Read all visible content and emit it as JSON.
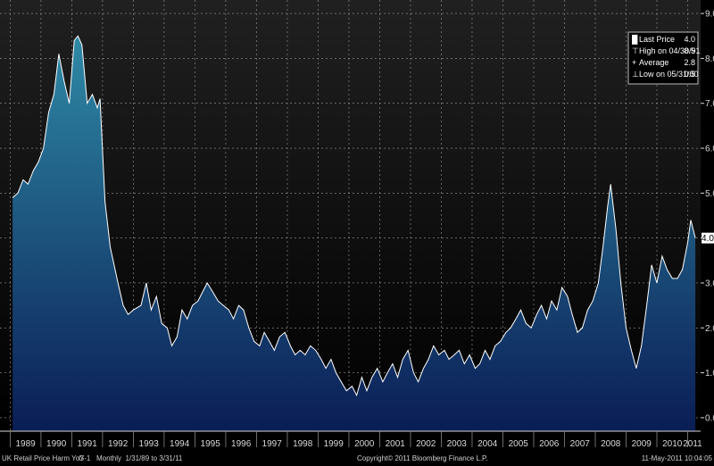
{
  "chart_data": {
    "type": "area",
    "title": "",
    "xlabel": "",
    "ylabel": "",
    "ylim": [
      -0.3,
      9.3
    ],
    "yticks": [
      "0.0",
      "1.0",
      "2.0",
      "3.0",
      "4.0",
      "5.0",
      "6.0",
      "7.0",
      "8.0",
      "9.0"
    ],
    "x_tick_labels": [
      "1989",
      "1990",
      "1991",
      "1992",
      "1993",
      "1994",
      "1995",
      "1996",
      "1997",
      "1998",
      "1999",
      "2000",
      "2001",
      "2002",
      "2003",
      "2004",
      "2005",
      "2006",
      "2007",
      "2008",
      "2009",
      "2010",
      "2011"
    ],
    "last_value_label": "4.0",
    "grid": true,
    "legend_position": "top-right",
    "legend": [
      {
        "marker": "█",
        "label": "Last Price",
        "value": "4.0"
      },
      {
        "marker": "⊤",
        "label": "High on 04/30/91",
        "value": "8.5"
      },
      {
        "marker": "+",
        "label": "Average",
        "value": "2.8"
      },
      {
        "marker": "⊥",
        "label": "Low on 05/31/00",
        "value": "0.5"
      }
    ],
    "series": [
      {
        "points": [
          [
            1989.08,
            4.9
          ],
          [
            1989.25,
            5.0
          ],
          [
            1989.42,
            5.3
          ],
          [
            1989.58,
            5.2
          ],
          [
            1989.75,
            5.5
          ],
          [
            1989.92,
            5.7
          ],
          [
            1990.08,
            6.0
          ],
          [
            1990.25,
            6.8
          ],
          [
            1990.42,
            7.2
          ],
          [
            1990.58,
            8.1
          ],
          [
            1990.75,
            7.5
          ],
          [
            1990.92,
            7.0
          ],
          [
            1991.08,
            8.4
          ],
          [
            1991.2,
            8.5
          ],
          [
            1991.33,
            8.3
          ],
          [
            1991.5,
            7.0
          ],
          [
            1991.67,
            7.2
          ],
          [
            1991.83,
            6.9
          ],
          [
            1991.92,
            7.1
          ],
          [
            1992.08,
            4.8
          ],
          [
            1992.25,
            3.8
          ],
          [
            1992.5,
            3.0
          ],
          [
            1992.67,
            2.5
          ],
          [
            1992.83,
            2.3
          ],
          [
            1993.0,
            2.4
          ],
          [
            1993.25,
            2.5
          ],
          [
            1993.42,
            3.0
          ],
          [
            1993.58,
            2.4
          ],
          [
            1993.75,
            2.7
          ],
          [
            1993.92,
            2.1
          ],
          [
            1994.1,
            2.0
          ],
          [
            1994.25,
            1.6
          ],
          [
            1994.42,
            1.8
          ],
          [
            1994.58,
            2.4
          ],
          [
            1994.75,
            2.2
          ],
          [
            1994.92,
            2.5
          ],
          [
            1995.1,
            2.6
          ],
          [
            1995.25,
            2.8
          ],
          [
            1995.4,
            3.0
          ],
          [
            1995.58,
            2.8
          ],
          [
            1995.75,
            2.6
          ],
          [
            1995.92,
            2.5
          ],
          [
            1996.1,
            2.4
          ],
          [
            1996.25,
            2.2
          ],
          [
            1996.42,
            2.5
          ],
          [
            1996.58,
            2.4
          ],
          [
            1996.75,
            2.0
          ],
          [
            1996.92,
            1.7
          ],
          [
            1997.1,
            1.6
          ],
          [
            1997.25,
            1.9
          ],
          [
            1997.42,
            1.7
          ],
          [
            1997.58,
            1.5
          ],
          [
            1997.75,
            1.8
          ],
          [
            1997.92,
            1.9
          ],
          [
            1998.1,
            1.6
          ],
          [
            1998.25,
            1.4
          ],
          [
            1998.42,
            1.5
          ],
          [
            1998.58,
            1.4
          ],
          [
            1998.75,
            1.6
          ],
          [
            1998.92,
            1.5
          ],
          [
            1999.1,
            1.3
          ],
          [
            1999.25,
            1.1
          ],
          [
            1999.42,
            1.3
          ],
          [
            1999.58,
            1.0
          ],
          [
            1999.75,
            0.8
          ],
          [
            1999.92,
            0.6
          ],
          [
            2000.1,
            0.7
          ],
          [
            2000.25,
            0.5
          ],
          [
            2000.42,
            0.9
          ],
          [
            2000.58,
            0.6
          ],
          [
            2000.75,
            0.9
          ],
          [
            2000.92,
            1.1
          ],
          [
            2001.1,
            0.8
          ],
          [
            2001.25,
            1.0
          ],
          [
            2001.42,
            1.2
          ],
          [
            2001.58,
            0.9
          ],
          [
            2001.75,
            1.3
          ],
          [
            2001.92,
            1.5
          ],
          [
            2002.1,
            1.0
          ],
          [
            2002.25,
            0.8
          ],
          [
            2002.42,
            1.1
          ],
          [
            2002.58,
            1.3
          ],
          [
            2002.75,
            1.6
          ],
          [
            2002.92,
            1.4
          ],
          [
            2003.1,
            1.5
          ],
          [
            2003.25,
            1.3
          ],
          [
            2003.42,
            1.4
          ],
          [
            2003.58,
            1.5
          ],
          [
            2003.75,
            1.2
          ],
          [
            2003.92,
            1.4
          ],
          [
            2004.1,
            1.1
          ],
          [
            2004.25,
            1.2
          ],
          [
            2004.42,
            1.5
          ],
          [
            2004.58,
            1.3
          ],
          [
            2004.75,
            1.6
          ],
          [
            2004.92,
            1.7
          ],
          [
            2005.1,
            1.9
          ],
          [
            2005.25,
            2.0
          ],
          [
            2005.42,
            2.2
          ],
          [
            2005.58,
            2.4
          ],
          [
            2005.75,
            2.1
          ],
          [
            2005.92,
            2.0
          ],
          [
            2006.1,
            2.3
          ],
          [
            2006.25,
            2.5
          ],
          [
            2006.42,
            2.2
          ],
          [
            2006.58,
            2.6
          ],
          [
            2006.75,
            2.4
          ],
          [
            2006.92,
            2.9
          ],
          [
            2007.1,
            2.7
          ],
          [
            2007.25,
            2.3
          ],
          [
            2007.42,
            1.9
          ],
          [
            2007.58,
            2.0
          ],
          [
            2007.75,
            2.4
          ],
          [
            2007.92,
            2.6
          ],
          [
            2008.1,
            3.0
          ],
          [
            2008.25,
            3.8
          ],
          [
            2008.4,
            4.7
          ],
          [
            2008.5,
            5.2
          ],
          [
            2008.67,
            4.2
          ],
          [
            2008.83,
            3.0
          ],
          [
            2009.0,
            2.0
          ],
          [
            2009.17,
            1.5
          ],
          [
            2009.33,
            1.1
          ],
          [
            2009.5,
            1.6
          ],
          [
            2009.67,
            2.5
          ],
          [
            2009.83,
            3.4
          ],
          [
            2010.0,
            3.0
          ],
          [
            2010.17,
            3.6
          ],
          [
            2010.33,
            3.3
          ],
          [
            2010.5,
            3.1
          ],
          [
            2010.67,
            3.1
          ],
          [
            2010.83,
            3.3
          ],
          [
            2011.0,
            3.9
          ],
          [
            2011.1,
            4.4
          ],
          [
            2011.25,
            4.0
          ]
        ]
      }
    ]
  },
  "footer": {
    "left": "UK Retail Price Harm YoY",
    "mid": "G-1   Monthly  1/31/89 to 3/31/11",
    "center": "Copyright© 2011 Bloomberg Finance L.P.",
    "right": "11-May-2011 10:04:05"
  },
  "colors": {
    "background": "#000000",
    "plot_bg_top": "#202020",
    "plot_bg_bottom": "#000000",
    "area_top": "#2f8aa6",
    "area_bottom": "#0a1d55",
    "line": "#ffffff",
    "grid": "#9a9a9a"
  }
}
